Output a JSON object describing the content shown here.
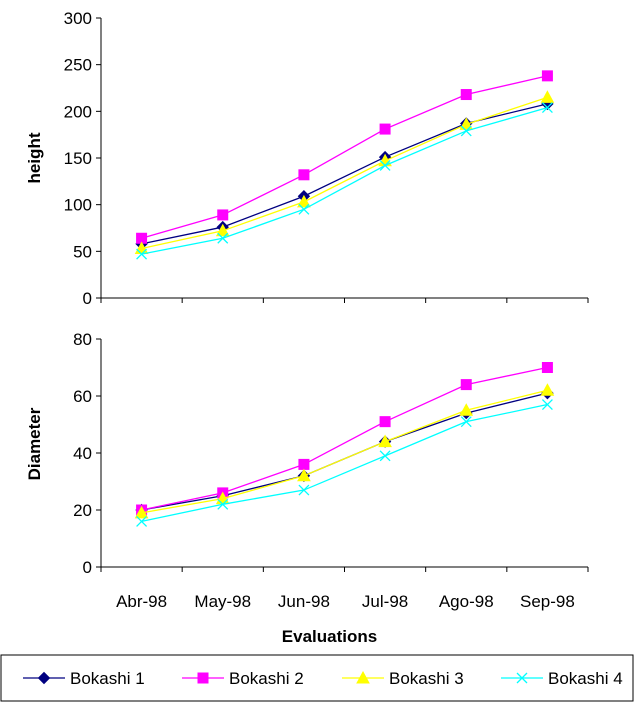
{
  "chart_data": [
    {
      "type": "line",
      "ylabel": "height",
      "xlabel": "",
      "categories": [
        "Abr-98",
        "May-98",
        "Jun-98",
        "Jul-98",
        "Ago-98",
        "Sep-98"
      ],
      "ylim": [
        0,
        300
      ],
      "yticks": [
        0,
        50,
        100,
        150,
        200,
        250,
        300
      ],
      "show_xtick_labels": false,
      "grid": false,
      "series": [
        {
          "name": "Bokashi 1",
          "values": [
            58,
            76,
            109,
            151,
            187,
            208
          ]
        },
        {
          "name": "Bokashi 2",
          "values": [
            64,
            89,
            132,
            181,
            218,
            238
          ]
        },
        {
          "name": "Bokashi 3",
          "values": [
            53,
            72,
            103,
            147,
            186,
            215
          ]
        },
        {
          "name": "Bokashi 4",
          "values": [
            47,
            64,
            95,
            142,
            179,
            204
          ]
        }
      ]
    },
    {
      "type": "line",
      "ylabel": "Diameter",
      "xlabel": "Evaluations",
      "categories": [
        "Abr-98",
        "May-98",
        "Jun-98",
        "Jul-98",
        "Ago-98",
        "Sep-98"
      ],
      "ylim": [
        0,
        80
      ],
      "yticks": [
        0,
        20,
        40,
        60,
        80
      ],
      "show_xtick_labels": true,
      "grid": false,
      "series": [
        {
          "name": "Bokashi 1",
          "values": [
            20,
            25,
            32,
            44,
            54,
            61
          ]
        },
        {
          "name": "Bokashi 2",
          "values": [
            20,
            26,
            36,
            51,
            64,
            70
          ]
        },
        {
          "name": "Bokashi 3",
          "values": [
            19,
            24,
            32,
            44,
            55,
            62
          ]
        },
        {
          "name": "Bokashi 4",
          "values": [
            16,
            22,
            27,
            39,
            51,
            57
          ]
        }
      ]
    }
  ],
  "legend": {
    "placement": "bottom",
    "entries": [
      {
        "label": "Bokashi 1",
        "color": "#000080",
        "marker": "diamond"
      },
      {
        "label": "Bokashi 2",
        "color": "#ff00ff",
        "marker": "square"
      },
      {
        "label": "Bokashi 3",
        "color": "#ffff00",
        "marker": "triangle"
      },
      {
        "label": "Bokashi 4",
        "color": "#00ffff",
        "marker": "x"
      }
    ]
  }
}
